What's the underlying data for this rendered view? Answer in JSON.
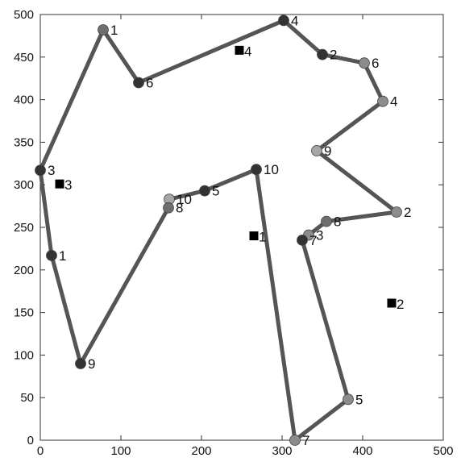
{
  "chart_data": {
    "type": "scatter",
    "xlim": [
      0,
      500
    ],
    "ylim": [
      0,
      500
    ],
    "xticks": [
      0,
      100,
      200,
      300,
      400,
      500
    ],
    "yticks": [
      0,
      50,
      100,
      150,
      200,
      250,
      300,
      350,
      400,
      450,
      500
    ],
    "x_tick_labels": [
      "0",
      "100",
      "200",
      "300",
      "400",
      "500"
    ],
    "y_tick_labels": [
      "0",
      "50",
      "100",
      "150",
      "200",
      "250",
      "300",
      "350",
      "400",
      "450",
      "500"
    ],
    "grid": false,
    "route": {
      "color": "#555555",
      "points": [
        {
          "x": 0,
          "y": 317,
          "label": "3",
          "marker": "#333333"
        },
        {
          "x": 78,
          "y": 482,
          "label": "1",
          "marker": "#6e6e6e"
        },
        {
          "x": 122,
          "y": 420,
          "label": "6",
          "marker": "#333333"
        },
        {
          "x": 302,
          "y": 493,
          "label": "4",
          "marker": "#333333"
        },
        {
          "x": 350,
          "y": 453,
          "label": "2",
          "marker": "#333333"
        },
        {
          "x": 402,
          "y": 443,
          "label": "6",
          "marker": "#8c8c8c"
        },
        {
          "x": 425,
          "y": 398,
          "label": "4",
          "marker": "#8c8c8c"
        },
        {
          "x": 343,
          "y": 340,
          "label": "9",
          "marker": "#a6a6a6"
        },
        {
          "x": 442,
          "y": 268,
          "label": "2",
          "marker": "#8c8c8c"
        },
        {
          "x": 355,
          "y": 257,
          "label": "8",
          "marker": "#6e6e6e"
        },
        {
          "x": 333,
          "y": 241,
          "label": "3",
          "marker": "#8c8c8c"
        },
        {
          "x": 325,
          "y": 235,
          "label": "7",
          "marker": "#333333"
        },
        {
          "x": 382,
          "y": 48,
          "label": "5",
          "marker": "#8c8c8c"
        },
        {
          "x": 316,
          "y": 0,
          "label": "7",
          "marker": "#8c8c8c"
        },
        {
          "x": 268,
          "y": 318,
          "label": "10",
          "marker": "#333333"
        },
        {
          "x": 204,
          "y": 293,
          "label": "5",
          "marker": "#333333"
        },
        {
          "x": 160,
          "y": 283,
          "label": "10",
          "marker": "#a6a6a6"
        },
        {
          "x": 159,
          "y": 273,
          "label": "8",
          "marker": "#6e6e6e"
        },
        {
          "x": 50,
          "y": 90,
          "label": "9",
          "marker": "#333333"
        },
        {
          "x": 14,
          "y": 217,
          "label": "1",
          "marker": "#333333"
        }
      ]
    },
    "depots": [
      {
        "x": 24,
        "y": 301,
        "label": "3"
      },
      {
        "x": 247,
        "y": 458,
        "label": "4"
      },
      {
        "x": 265,
        "y": 240,
        "label": "1"
      },
      {
        "x": 436,
        "y": 161,
        "label": "2"
      }
    ],
    "depot_color": "#000000"
  }
}
